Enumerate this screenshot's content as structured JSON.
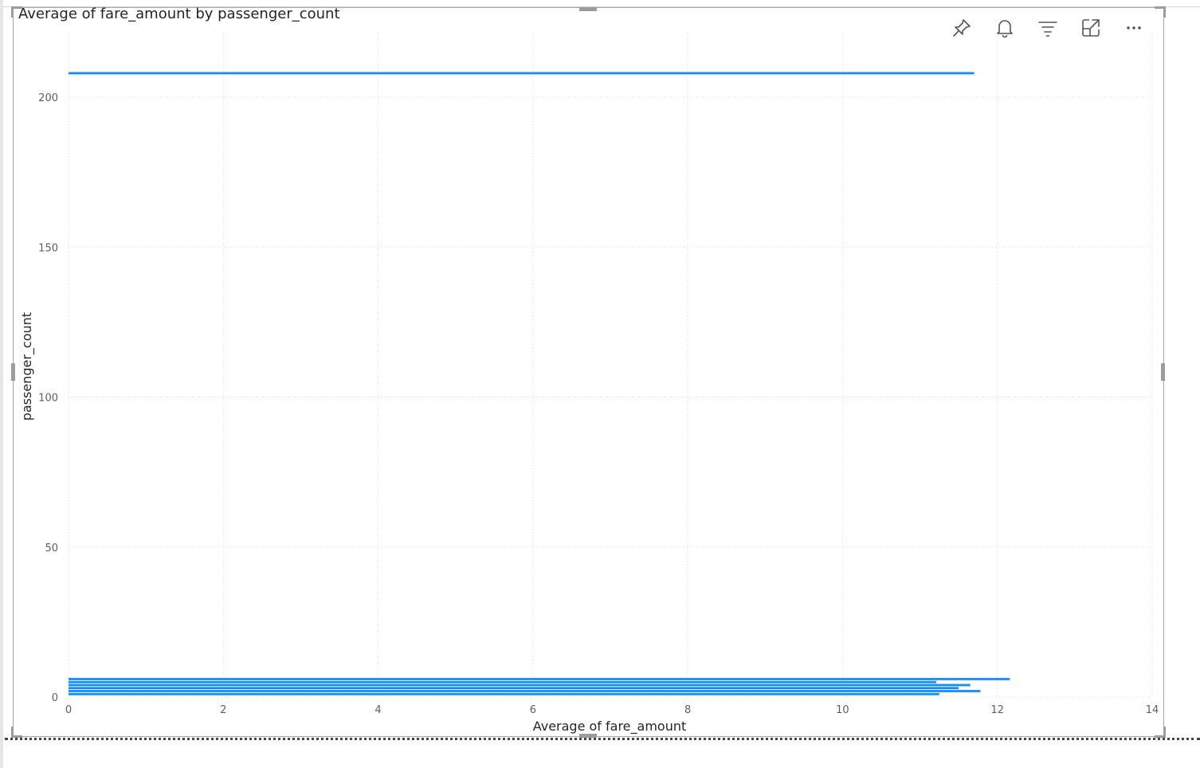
{
  "visual": {
    "toolbar": [
      {
        "name": "pin-icon",
        "label": "Pin visual"
      },
      {
        "name": "bell-icon",
        "label": "Set alert"
      },
      {
        "name": "filter-icon",
        "label": "Filters"
      },
      {
        "name": "focus-mode-icon",
        "label": "Focus mode"
      },
      {
        "name": "more-options-icon",
        "label": "More options"
      }
    ]
  },
  "chart_data": {
    "type": "bar",
    "orientation": "horizontal",
    "title": "Average of fare_amount by passenger_count",
    "xlabel": "Average of fare_amount",
    "ylabel": "passenger_count",
    "xlim": [
      0,
      14
    ],
    "ylim": [
      0,
      208
    ],
    "x_ticks": [
      "0",
      "2",
      "4",
      "6",
      "8",
      "10",
      "12",
      "14"
    ],
    "y_ticks": [
      "0",
      "50",
      "100",
      "150",
      "200"
    ],
    "grid": true,
    "bar_color": "#118DFF",
    "series": [
      {
        "categories": [
          1,
          2,
          3,
          4,
          5,
          6,
          208
        ],
        "values": [
          11.25,
          11.78,
          11.5,
          11.65,
          11.21,
          12.16,
          11.7
        ]
      }
    ]
  }
}
